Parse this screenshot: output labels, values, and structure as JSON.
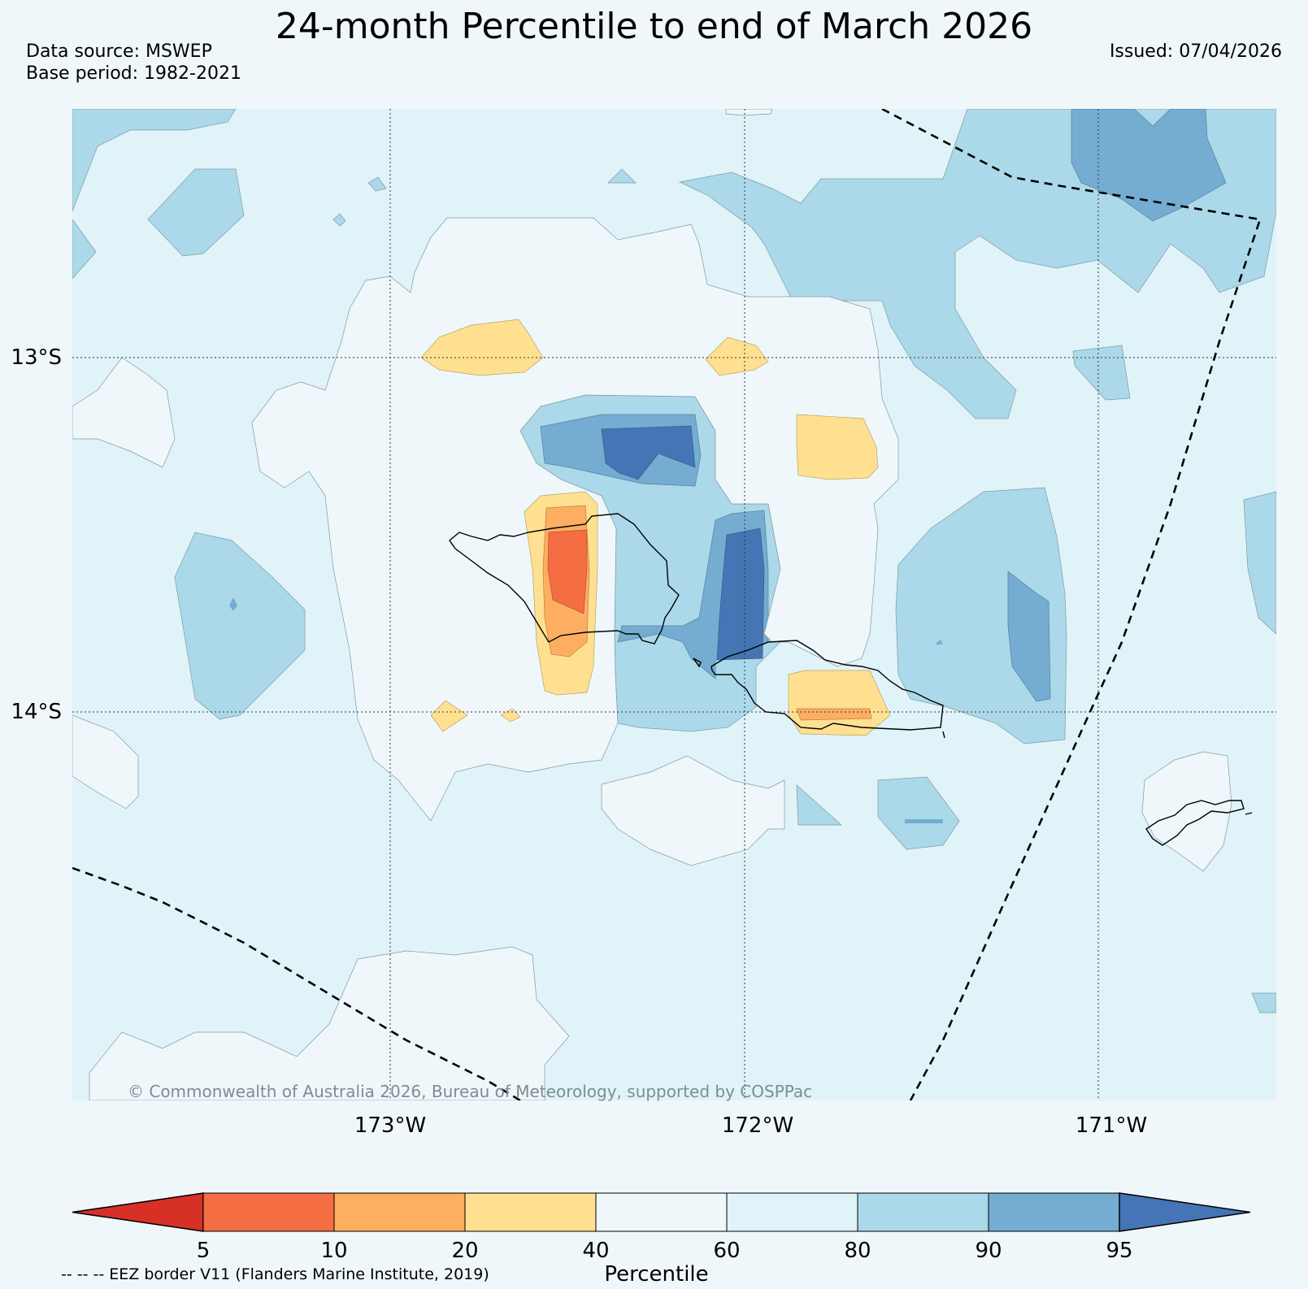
{
  "title": "24-month Percentile to end of March 2026",
  "data_source": "Data source: MSWEP",
  "base_period": "Base period: 1982-2021",
  "issued": "Issued: 07/04/2026",
  "copyright": "© Commonwealth of Australia 2026, Bureau of Meteorology, supported by COSPPac",
  "eez_note": "-- -- -- EEZ border V11 (Flanders Marine Institute, 2019)",
  "axes": {
    "lon_labels": [
      "173°W",
      "172°W",
      "171°W"
    ],
    "lat_labels": [
      "13°S",
      "14°S"
    ]
  },
  "colorbar": {
    "label": "Percentile",
    "ticks": [
      "5",
      "10",
      "20",
      "40",
      "60",
      "80",
      "90",
      "95"
    ],
    "colors": [
      "#d73027",
      "#f46d43",
      "#fdae61",
      "#fee090",
      "#eff7fa",
      "#e0f3f8",
      "#abd9e9",
      "#74add1",
      "#4575b4"
    ]
  },
  "palette": {
    "background": "#eff7fa",
    "light_blue": "#e0f3f8",
    "mid_blue": "#abd9e9",
    "blue": "#74add1",
    "dark_blue": "#4575b4",
    "yellow": "#fee090",
    "orange": "#fdae61",
    "red_orange": "#f46d43"
  }
}
